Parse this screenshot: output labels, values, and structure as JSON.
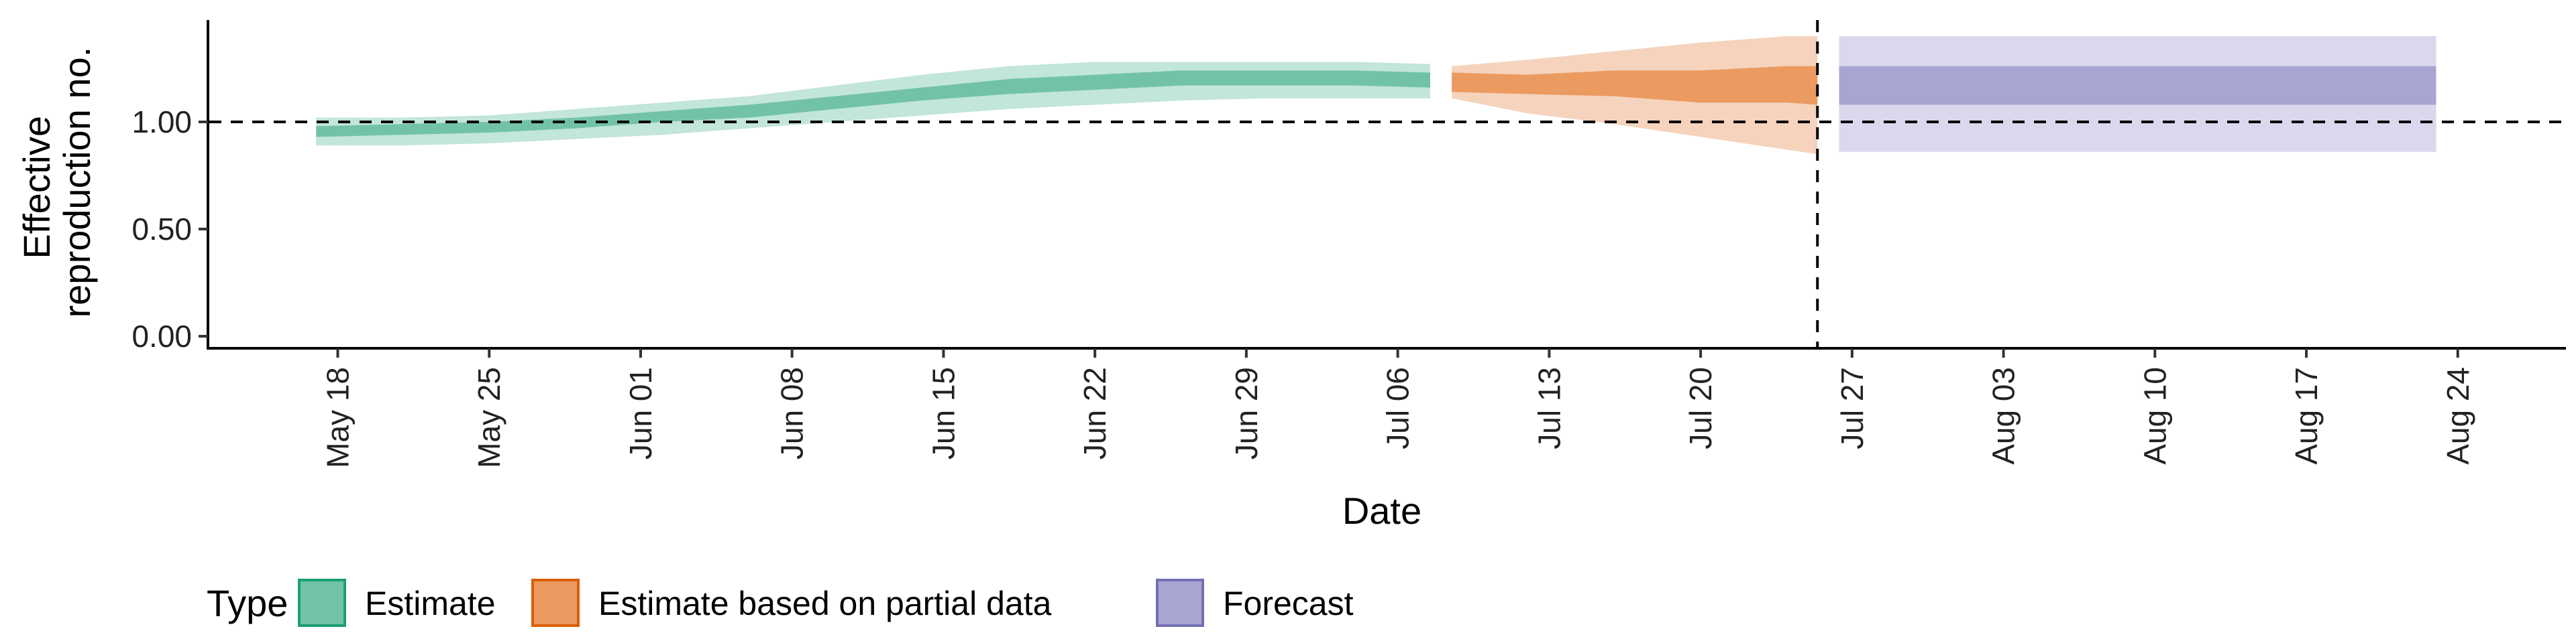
{
  "chart_data": {
    "type": "area",
    "xlabel": "Date",
    "ylabel": [
      "Effective",
      "reproduction no."
    ],
    "ylim": [
      0,
      1.45
    ],
    "y_ticks": [
      "0.00",
      "0.50",
      "1.00"
    ],
    "y_tick_values": [
      0,
      0.5,
      1.0
    ],
    "x_ticks": [
      "May 18",
      "May 25",
      "Jun 01",
      "Jun 08",
      "Jun 15",
      "Jun 22",
      "Jun 29",
      "Jul 06",
      "Jul 13",
      "Jul 20",
      "Jul 27",
      "Aug 03",
      "Aug 10",
      "Aug 17",
      "Aug 24"
    ],
    "x_tick_days": [
      18,
      25,
      32,
      39,
      46,
      53,
      60,
      67,
      74,
      81,
      88,
      95,
      102,
      109,
      116
    ],
    "xlim_days": [
      12,
      121
    ],
    "reference_line_y": 1.0,
    "vertical_line_day": 86.4,
    "legend": {
      "title": "Type",
      "items": [
        {
          "label": "Estimate",
          "fill": "#72c3a6",
          "stroke": "#1b9e77"
        },
        {
          "label": "Estimate based on partial data",
          "fill": "#eb9a60",
          "stroke": "#d95f02"
        },
        {
          "label": "Forecast",
          "fill": "#a9a5d2",
          "stroke": "#7570b3"
        }
      ]
    },
    "series": [
      {
        "name": "Estimate",
        "color_outer": "#c2e6d8",
        "color_inner": "#72c3a6",
        "days": [
          17,
          21,
          25,
          29,
          33,
          37,
          41,
          45,
          49,
          53,
          57,
          61,
          65,
          68.5
        ],
        "outer_upper": [
          1.02,
          1.02,
          1.03,
          1.06,
          1.09,
          1.12,
          1.17,
          1.22,
          1.26,
          1.28,
          1.28,
          1.28,
          1.28,
          1.27
        ],
        "outer_lower": [
          0.89,
          0.89,
          0.9,
          0.92,
          0.94,
          0.97,
          1.0,
          1.03,
          1.06,
          1.08,
          1.1,
          1.11,
          1.11,
          1.11
        ],
        "inner_upper": [
          0.98,
          0.99,
          1.0,
          1.02,
          1.05,
          1.08,
          1.12,
          1.16,
          1.2,
          1.22,
          1.24,
          1.24,
          1.24,
          1.23
        ],
        "inner_lower": [
          0.93,
          0.94,
          0.95,
          0.97,
          1.0,
          1.02,
          1.06,
          1.1,
          1.13,
          1.15,
          1.17,
          1.17,
          1.17,
          1.16
        ]
      },
      {
        "name": "Estimate based on partial data",
        "color_outer": "#f5d3bc",
        "color_inner": "#eb9a60",
        "days": [
          69.5,
          73,
          77,
          81,
          85,
          86.4
        ],
        "outer_upper": [
          1.26,
          1.29,
          1.33,
          1.37,
          1.4,
          1.4
        ],
        "outer_lower": [
          1.11,
          1.04,
          0.99,
          0.93,
          0.87,
          0.85
        ],
        "inner_upper": [
          1.23,
          1.22,
          1.24,
          1.24,
          1.26,
          1.26
        ],
        "inner_lower": [
          1.14,
          1.13,
          1.12,
          1.09,
          1.09,
          1.08
        ]
      },
      {
        "name": "Forecast",
        "color_outer": "#d9d8ec",
        "color_inner": "#a9a5d2",
        "days": [
          87.4,
          115
        ],
        "outer_upper": [
          1.4,
          1.4
        ],
        "outer_lower": [
          0.86,
          0.86
        ],
        "inner_upper": [
          1.26,
          1.26
        ],
        "inner_lower": [
          1.08,
          1.08
        ]
      }
    ]
  }
}
